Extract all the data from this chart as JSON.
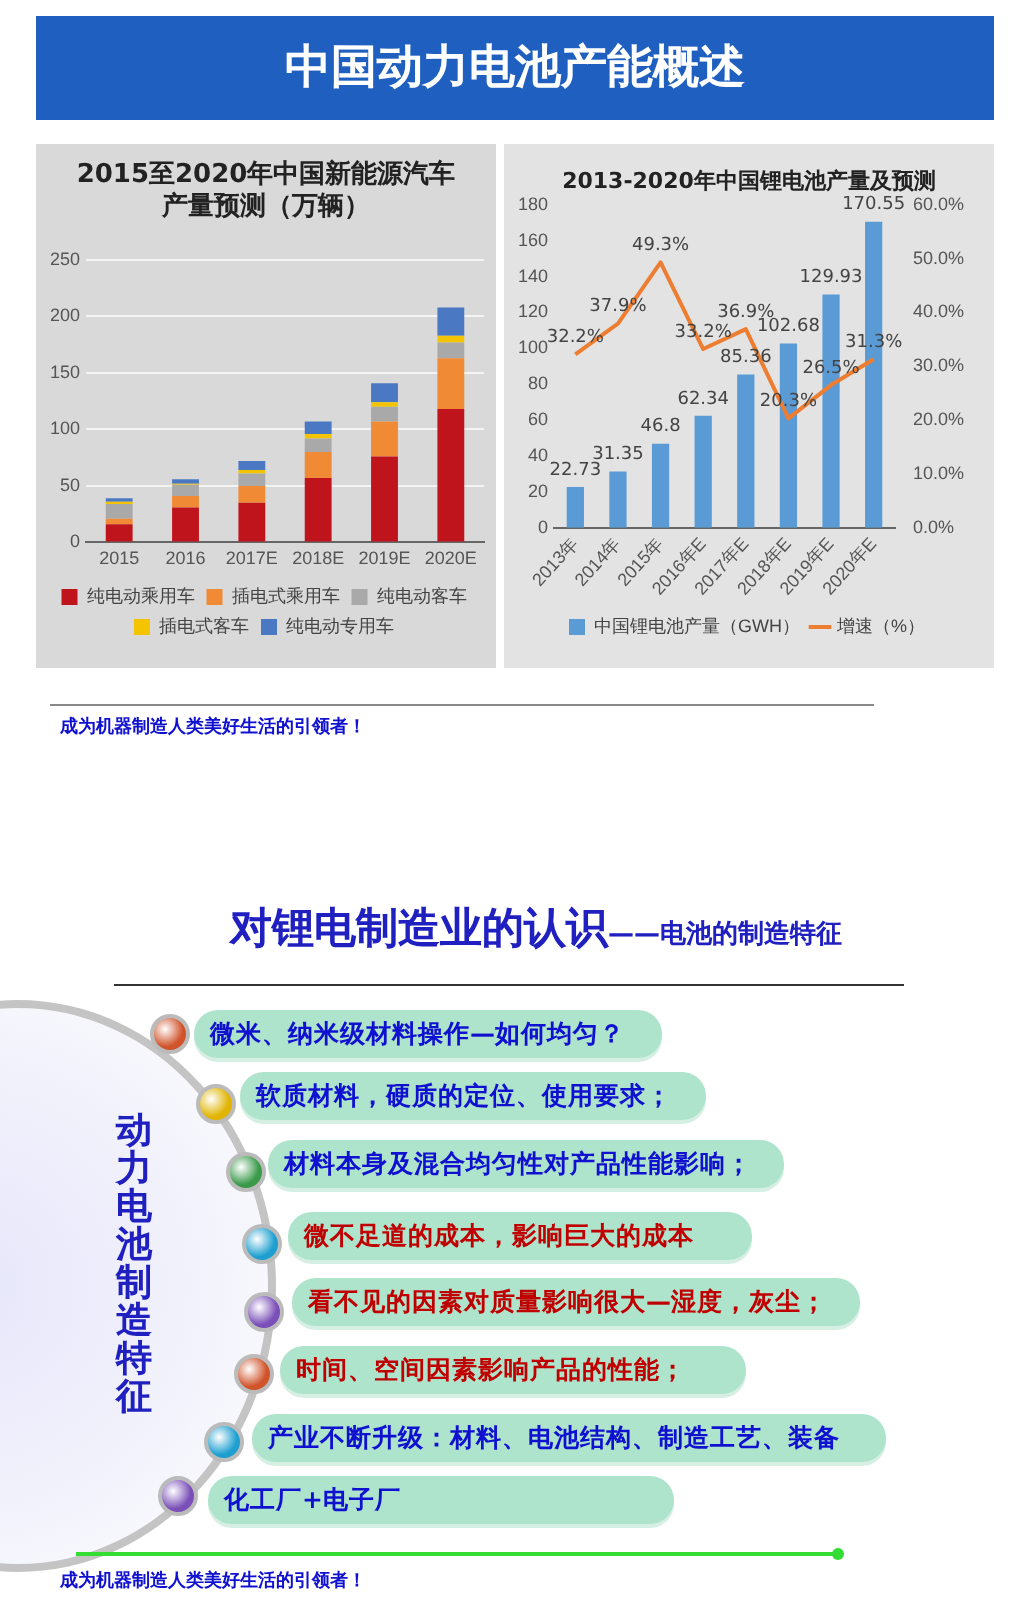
{
  "chart_data": [
    {
      "type": "other",
      "title": "中国动力电池产能概述",
      "annotations": [
        "成为机器制造人类美好生活的引领者！"
      ]
    },
    {
      "type": "bar",
      "title": "2015至2020年中国新能源汽车产量预测（万辆）",
      "categories": [
        "2015",
        "2016",
        "2017E",
        "2018E",
        "2019E",
        "2020E"
      ],
      "stacked": true,
      "ylim": [
        0,
        250
      ],
      "yticks": [
        0,
        50,
        100,
        150,
        200,
        250
      ],
      "grid": "y",
      "legend": "bottom",
      "series": [
        {
          "name": "纯电动乘用车",
          "color": "#c0141c",
          "values": [
            16,
            31,
            35,
            57,
            76,
            118
          ]
        },
        {
          "name": "插电式乘用车",
          "color": "#f08a34",
          "values": [
            5,
            10,
            15,
            23,
            31,
            45
          ]
        },
        {
          "name": "纯电动客车",
          "color": "#a9a9a9",
          "values": [
            13,
            10,
            11,
            12,
            13,
            14
          ]
        },
        {
          "name": "插电式客车",
          "color": "#f5c400",
          "values": [
            2,
            1,
            3,
            4,
            4,
            6
          ]
        },
        {
          "name": "纯电动专用车",
          "color": "#4a78c2",
          "values": [
            3,
            4,
            8,
            11,
            17,
            25
          ]
        }
      ]
    },
    {
      "type": "bar",
      "title": "2013-2020年中国锂电池产量及预测",
      "categories": [
        "2013年",
        "2014年",
        "2015年",
        "2016年E",
        "2017年E",
        "2018年E",
        "2019年E",
        "2020年E"
      ],
      "ylim": [
        0,
        180
      ],
      "yticks": [
        0,
        20,
        40,
        60,
        80,
        100,
        120,
        140,
        160,
        180
      ],
      "y2lim": [
        0,
        60
      ],
      "y2ticks": [
        {
          "value": 0,
          "label": "0.0%"
        },
        {
          "value": 10,
          "label": "10.0%"
        },
        {
          "value": 20,
          "label": "20.0%"
        },
        {
          "value": 30,
          "label": "30.0%"
        },
        {
          "value": 40,
          "label": "40.0%"
        },
        {
          "value": 50,
          "label": "50.0%"
        },
        {
          "value": 60,
          "label": "60.0%"
        }
      ],
      "legend": "bottom",
      "series": [
        {
          "type": "bar",
          "name": "中国锂电池产量（GWH）",
          "color": "#5b9bd5",
          "values": [
            22.73,
            31.35,
            46.8,
            62.34,
            85.36,
            102.68,
            129.93,
            170.55
          ],
          "value_labels": [
            "22.73",
            "31.35",
            "46.8",
            "62.34",
            "85.36",
            "102.68",
            "129.93",
            "170.55"
          ]
        },
        {
          "type": "line",
          "name": "增速（%）",
          "color": "#ed7d31",
          "axis": "y2",
          "values": [
            32.2,
            37.9,
            49.3,
            33.2,
            36.9,
            20.3,
            26.5,
            31.3
          ],
          "value_labels": [
            "32.2%",
            "37.9%",
            "49.3%",
            "33.2%",
            "36.9%",
            "20.3%",
            "26.5%",
            "31.3%"
          ]
        }
      ]
    },
    {
      "type": "other",
      "title": "对锂电制造业的认识",
      "subtitle": "——电池的制造特征",
      "annotations": [
        "动力电池制造特征",
        "微米、纳米级材料操作—如何均匀？",
        "软质材料，硬质的定位、使用要求；",
        "材料本身及混合均匀性对产品性能影响；",
        "微不足道的成本，影响巨大的成本",
        "看不见的因素对质量影响很大—湿度，灰尘；",
        "时间、空间因素影响产品的性能；",
        "产业不断升级：材料、电池结构、制造工艺、装备",
        "化工厂+电子厂",
        "成为机器制造人类美好生活的引领者！"
      ]
    }
  ]
}
